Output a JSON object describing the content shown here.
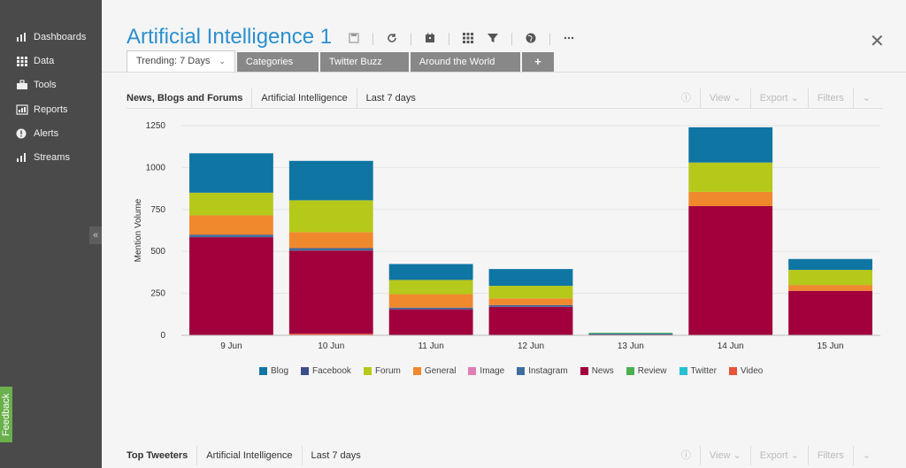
{
  "sidebar": {
    "items": [
      {
        "label": "Dashboards",
        "icon": "dashboard-icon"
      },
      {
        "label": "Data",
        "icon": "grid-icon"
      },
      {
        "label": "Tools",
        "icon": "toolbox-icon"
      },
      {
        "label": "Reports",
        "icon": "report-icon"
      },
      {
        "label": "Alerts",
        "icon": "alert-icon"
      },
      {
        "label": "Streams",
        "icon": "stream-icon"
      }
    ],
    "collapse": "«",
    "feedback": "Feedback"
  },
  "header": {
    "title": "Artificial Intelligence 1",
    "close": "✕"
  },
  "tabs": [
    {
      "label": "Trending: 7 Days",
      "active": true,
      "caret": "⌄"
    },
    {
      "label": "Categories"
    },
    {
      "label": "Twitter Buzz"
    },
    {
      "label": "Around the World"
    },
    {
      "label": "+"
    }
  ],
  "panel1": {
    "title": "News, Blogs and Forums",
    "query": "Artificial Intelligence",
    "range": "Last 7 days",
    "tools": {
      "info": "ⓘ",
      "view": "View ⌄",
      "export": "Export ⌄",
      "filters": "Filters",
      "more": "⌄"
    }
  },
  "panel2": {
    "title": "Top Tweeters",
    "query": "Artificial Intelligence",
    "range": "Last 7 days",
    "tools": {
      "info": "ⓘ",
      "view": "View ⌄",
      "export": "Export ⌄",
      "filters": "Filters",
      "more": "⌄"
    }
  },
  "chart_data": {
    "type": "bar",
    "stacked": true,
    "ylabel": "Mention Volume",
    "ylim": [
      0,
      1250
    ],
    "yticks": [
      0,
      250,
      500,
      750,
      1000,
      1250
    ],
    "categories": [
      "9 Jun",
      "10 Jun",
      "11 Jun",
      "12 Jun",
      "13 Jun",
      "14 Jun",
      "15 Jun"
    ],
    "series": [
      {
        "name": "Video",
        "color": "#e8533c",
        "values": [
          0,
          10,
          0,
          0,
          0,
          0,
          0
        ]
      },
      {
        "name": "News",
        "color": "#a1003c",
        "values": [
          585,
          495,
          155,
          170,
          5,
          770,
          265
        ]
      },
      {
        "name": "Instagram",
        "color": "#3d6f9e",
        "values": [
          10,
          10,
          5,
          5,
          0,
          0,
          0
        ]
      },
      {
        "name": "Facebook",
        "color": "#3b4f8c",
        "values": [
          5,
          5,
          5,
          5,
          0,
          0,
          0
        ]
      },
      {
        "name": "General",
        "color": "#f0892e",
        "values": [
          115,
          95,
          80,
          40,
          0,
          85,
          35
        ]
      },
      {
        "name": "Forum",
        "color": "#b5c91a",
        "values": [
          135,
          190,
          85,
          75,
          0,
          175,
          90
        ]
      },
      {
        "name": "Blog",
        "color": "#0f75a3",
        "values": [
          235,
          235,
          95,
          100,
          5,
          210,
          65
        ]
      },
      {
        "name": "Review",
        "color": "#4caf50",
        "values": [
          0,
          0,
          0,
          0,
          5,
          0,
          0
        ]
      },
      {
        "name": "Image",
        "color": "#e07fb2",
        "values": [
          0,
          0,
          0,
          0,
          0,
          0,
          0
        ]
      },
      {
        "name": "Twitter",
        "color": "#26c0d3",
        "values": [
          0,
          0,
          0,
          0,
          0,
          0,
          0
        ]
      }
    ],
    "legend": [
      "Blog",
      "Facebook",
      "Forum",
      "General",
      "Image",
      "Instagram",
      "News",
      "Review",
      "Twitter",
      "Video"
    ],
    "legend_position": "bottom",
    "grid": true
  }
}
